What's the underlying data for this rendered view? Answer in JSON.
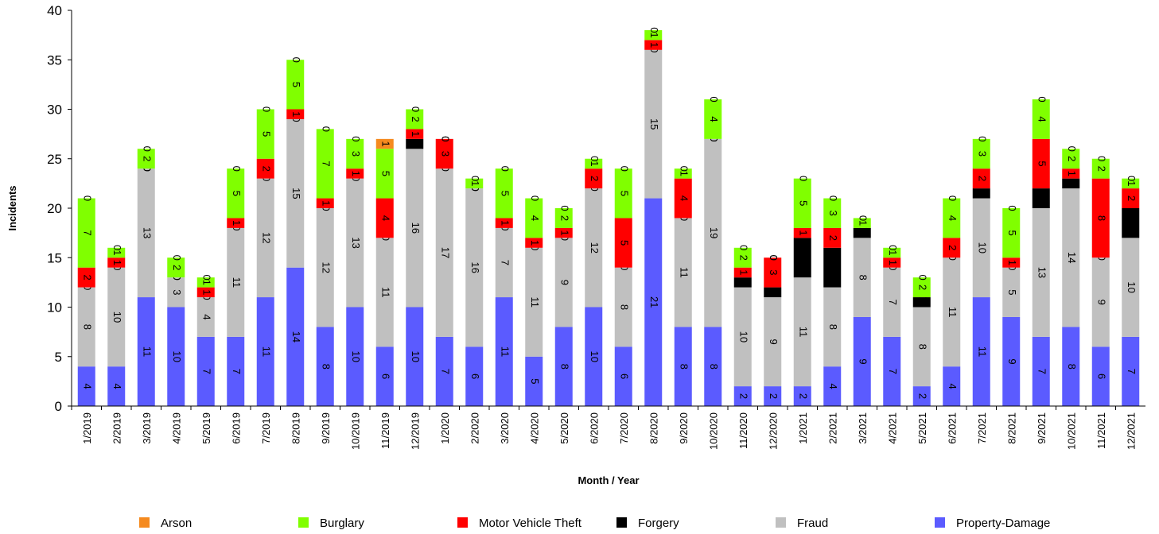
{
  "chart_data": {
    "type": "stacked-bar",
    "x_label": "Month / Year",
    "y_label": "Incidents",
    "categories": [
      "1/2019",
      "2/2019",
      "3/2019",
      "4/2019",
      "5/2019",
      "6/2019",
      "7/2019",
      "8/2019",
      "9/2019",
      "10/2019",
      "11/2019",
      "12/2019",
      "1/2020",
      "2/2020",
      "3/2020",
      "4/2020",
      "5/2020",
      "6/2020",
      "7/2020",
      "8/2020",
      "9/2020",
      "10/2020",
      "11/2020",
      "12/2020",
      "1/2021",
      "2/2021",
      "3/2021",
      "4/2021",
      "5/2021",
      "6/2021",
      "7/2021",
      "8/2021",
      "9/2021",
      "10/2021",
      "11/2021",
      "12/2021"
    ],
    "series": [
      {
        "name": "Arson",
        "color": "#f58a1f",
        "values": [
          0,
          0,
          0,
          0,
          0,
          0,
          0,
          0,
          0,
          0,
          1,
          0,
          0,
          0,
          0,
          0,
          0,
          0,
          0,
          0,
          0,
          0,
          0,
          0,
          0,
          0,
          0,
          0,
          0,
          0,
          0,
          0,
          0,
          0,
          0,
          0
        ]
      },
      {
        "name": "Burglary",
        "color": "#80ff00",
        "values": [
          7,
          1,
          2,
          2,
          1,
          5,
          5,
          5,
          7,
          3,
          5,
          2,
          0,
          1,
          5,
          4,
          2,
          1,
          5,
          1,
          1,
          4,
          2,
          0,
          5,
          3,
          1,
          1,
          2,
          4,
          3,
          5,
          4,
          2,
          2,
          1
        ]
      },
      {
        "name": "Motor Vehicle Theft",
        "color": "#ff0000",
        "values": [
          2,
          1,
          0,
          0,
          1,
          1,
          2,
          1,
          1,
          1,
          4,
          1,
          3,
          0,
          1,
          1,
          1,
          2,
          5,
          1,
          4,
          0,
          1,
          3,
          1,
          2,
          0,
          1,
          0,
          2,
          2,
          1,
          5,
          1,
          8,
          2
        ]
      },
      {
        "name": "Forgery",
        "color": "#000000",
        "values": [
          0,
          0,
          0,
          0,
          0,
          0,
          0,
          0,
          0,
          0,
          0,
          1,
          0,
          0,
          0,
          0,
          0,
          0,
          0,
          0,
          0,
          0,
          1,
          1,
          4,
          4,
          1,
          0,
          1,
          0,
          1,
          0,
          2,
          1,
          0,
          3
        ]
      },
      {
        "name": "Fraud",
        "color": "#c0c0c0",
        "values": [
          8,
          10,
          13,
          3,
          4,
          11,
          12,
          15,
          12,
          13,
          11,
          16,
          17,
          16,
          7,
          11,
          9,
          12,
          8,
          15,
          11,
          19,
          10,
          9,
          11,
          8,
          8,
          7,
          8,
          11,
          10,
          5,
          13,
          14,
          9,
          10
        ]
      },
      {
        "name": "Property-Damage",
        "color": "#5b5bff",
        "values": [
          4,
          4,
          11,
          10,
          7,
          7,
          11,
          14,
          8,
          10,
          6,
          10,
          7,
          6,
          11,
          5,
          8,
          10,
          6,
          21,
          8,
          8,
          2,
          2,
          2,
          4,
          9,
          7,
          2,
          4,
          11,
          9,
          7,
          8,
          6,
          7
        ]
      }
    ],
    "ylim": [
      0,
      40
    ],
    "yticks": [
      0,
      5,
      10,
      15,
      20,
      25,
      30,
      35,
      40
    ],
    "grid": false,
    "legend": "bottom"
  }
}
